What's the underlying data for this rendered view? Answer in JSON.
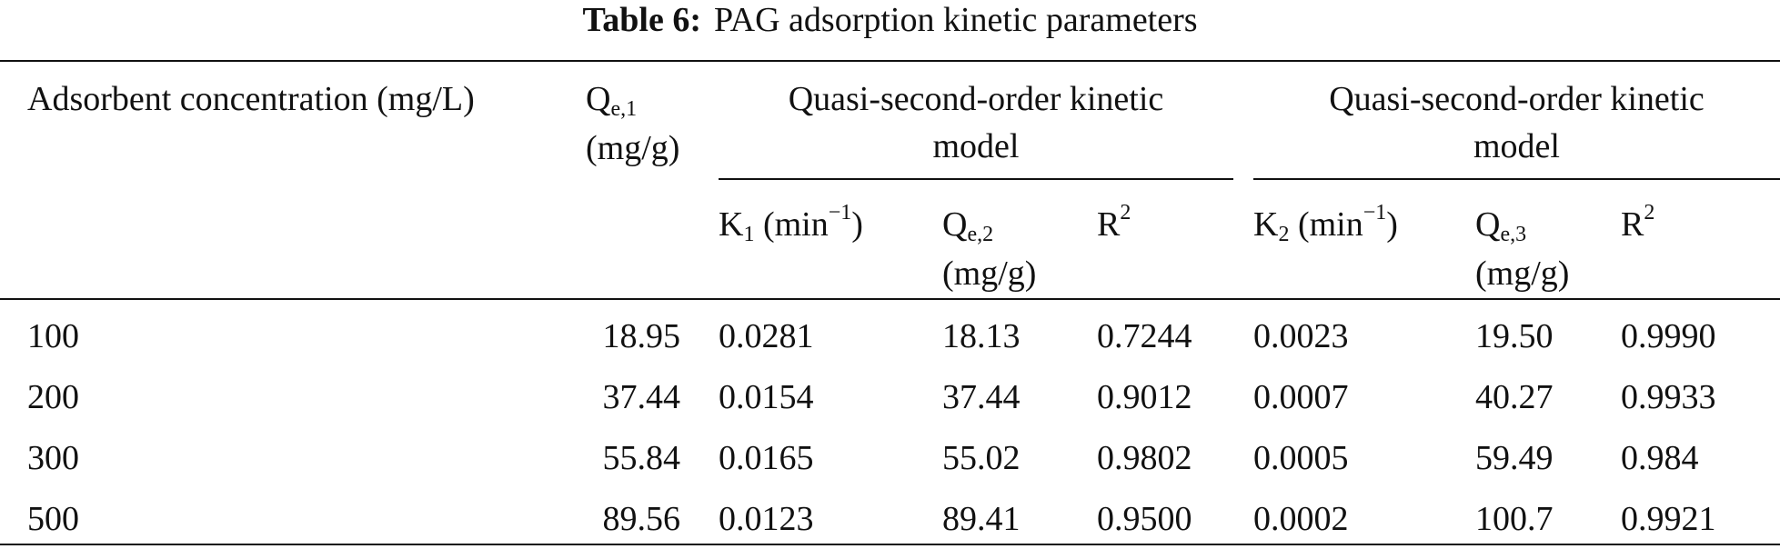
{
  "caption": {
    "label": "Table 6:",
    "title": "PAG adsorption kinetic parameters"
  },
  "header": {
    "col_concentration": "Adsorbent concentration (mg/L)",
    "col_qe1": {
      "main": "Q",
      "sub": "e,1",
      "unit": "(mg/g)"
    },
    "group1": {
      "line1": "Quasi-second-order kinetic",
      "line2": "model"
    },
    "group2": {
      "line1": "Quasi-second-order kinetic",
      "line2": "model"
    },
    "k1": {
      "main": "K",
      "sub": "1",
      "unit_pre": "(min",
      "unit_sup": "−1",
      "unit_post": ")"
    },
    "qe2": {
      "main": "Q",
      "sub": "e,2",
      "unit": "(mg/g)"
    },
    "r2_1": {
      "main": "R",
      "sup": "2"
    },
    "k2": {
      "main": "K",
      "sub": "2",
      "unit_pre": "(min",
      "unit_sup": "−1",
      "unit_post": ")"
    },
    "qe3": {
      "main": "Q",
      "sub": "e,3",
      "unit": "(mg/g)"
    },
    "r2_2": {
      "main": "R",
      "sup": "2"
    }
  },
  "rows": [
    {
      "conc": "100",
      "qe1": "18.95",
      "k1": "0.0281",
      "qe2": "18.13",
      "r2a": "0.7244",
      "k2": "0.0023",
      "qe3": "19.50",
      "r2b": "0.9990"
    },
    {
      "conc": "200",
      "qe1": "37.44",
      "k1": "0.0154",
      "qe2": "37.44",
      "r2a": "0.9012",
      "k2": "0.0007",
      "qe3": "40.27",
      "r2b": "0.9933"
    },
    {
      "conc": "300",
      "qe1": "55.84",
      "k1": "0.0165",
      "qe2": "55.02",
      "r2a": "0.9802",
      "k2": "0.0005",
      "qe3": "59.49",
      "r2b": "0.984"
    },
    {
      "conc": "500",
      "qe1": "89.56",
      "k1": "0.0123",
      "qe2": "89.41",
      "r2a": "0.9500",
      "k2": "0.0002",
      "qe3": "100.7",
      "r2b": "0.9921"
    }
  ]
}
